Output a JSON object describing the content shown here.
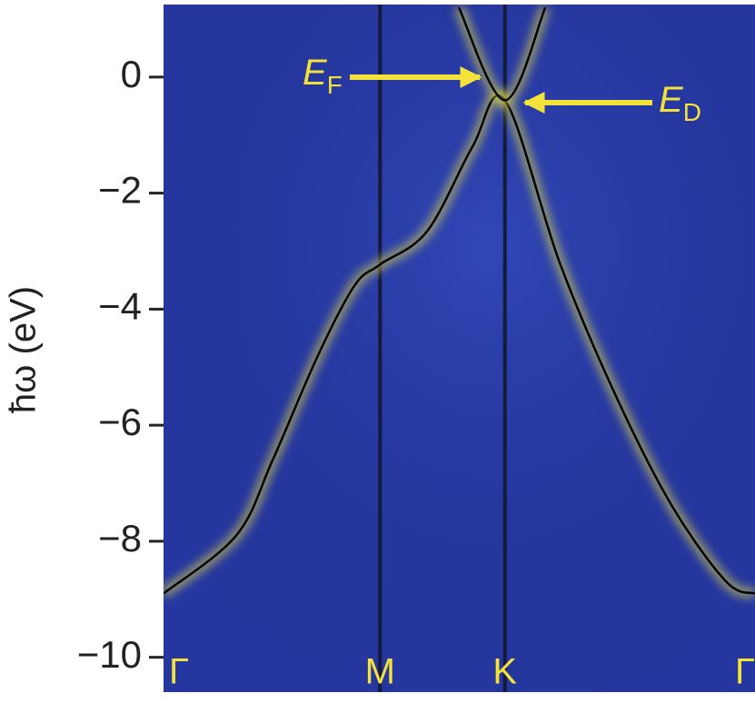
{
  "chart_data": {
    "type": "line",
    "y_label": "ħω (eV)",
    "xlim": [
      0,
      2.732
    ],
    "ylim": [
      -10.6,
      1.25
    ],
    "xticks": [
      {
        "value": 0,
        "label": "Γ"
      },
      {
        "value": 1,
        "label": "M"
      },
      {
        "value": 1.577,
        "label": "K"
      },
      {
        "value": 2.732,
        "label": "Γ"
      }
    ],
    "yticks": [
      0,
      {
        "value": -2,
        "label": "−2"
      },
      {
        "value": -4,
        "label": "−4"
      },
      {
        "value": -6,
        "label": "−6"
      },
      {
        "value": -8,
        "label": "−8"
      },
      {
        "value": -10,
        "label": "−10"
      }
    ],
    "background_color": "#2536a0",
    "glow_color": "#e9e23c",
    "vline_color": "#141a3a",
    "series": [
      {
        "color": "#000000",
        "x": [
          0,
          0.336,
          0.504,
          0.713,
          0.881,
          1,
          1.217,
          1.427,
          1.577,
          1.83,
          2.09,
          2.35,
          2.6,
          2.732
        ],
        "values": [
          -8.9,
          -7.9,
          -6.6,
          -4.8,
          -3.6,
          -3.23,
          -2.66,
          -1.2,
          -0.4,
          -3.2,
          -5.5,
          -7.4,
          -8.7,
          -8.9
        ]
      },
      {
        "color": "#000000",
        "x": [
          1.364,
          1.577,
          1.763
        ],
        "values": [
          1.2,
          -0.4,
          1.2
        ]
      }
    ],
    "annotations": [
      {
        "text": "E",
        "subscript": "F"
      },
      {
        "text": "E",
        "subscript": "D"
      }
    ]
  }
}
